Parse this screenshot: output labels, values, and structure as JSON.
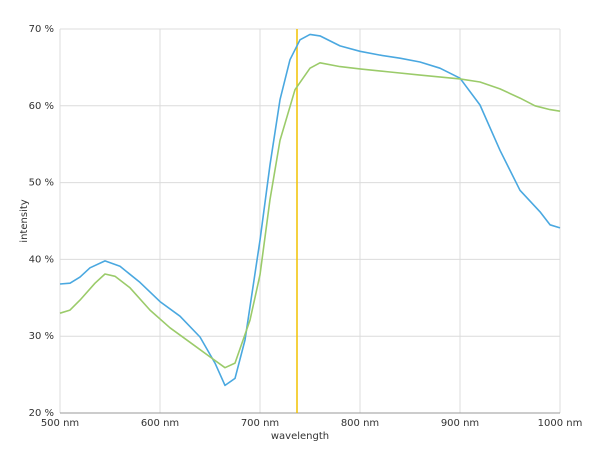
{
  "chart_data": {
    "type": "line",
    "xlabel": "wavelength",
    "ylabel": "intensity",
    "xlim": [
      500,
      1000
    ],
    "ylim": [
      20,
      70
    ],
    "xticks": [
      {
        "value": 500,
        "label": "500 nm"
      },
      {
        "value": 600,
        "label": "600 nm"
      },
      {
        "value": 700,
        "label": "700 nm"
      },
      {
        "value": 800,
        "label": "800 nm"
      },
      {
        "value": 900,
        "label": "900 nm"
      },
      {
        "value": 1000,
        "label": "1000 nm"
      }
    ],
    "yticks": [
      {
        "value": 20,
        "label": "20 %"
      },
      {
        "value": 30,
        "label": "30 %"
      },
      {
        "value": 40,
        "label": "40 %"
      },
      {
        "value": 50,
        "label": "50 %"
      },
      {
        "value": 60,
        "label": "60 %"
      },
      {
        "value": 70,
        "label": "70 %"
      }
    ],
    "grid": true,
    "vertical_line": {
      "x": 737,
      "color": "#f2c200"
    },
    "series": [
      {
        "color": "#4aa8e0",
        "x": [
          500,
          510,
          520,
          530,
          545,
          560,
          580,
          600,
          620,
          640,
          655,
          665,
          675,
          685,
          700,
          710,
          720,
          730,
          740,
          750,
          760,
          780,
          800,
          820,
          840,
          860,
          880,
          900,
          920,
          940,
          960,
          980,
          990,
          1000
        ],
        "values": [
          36.8,
          36.9,
          37.7,
          38.9,
          39.8,
          39.1,
          37.0,
          34.5,
          32.6,
          29.9,
          26.5,
          23.6,
          24.5,
          29.5,
          42.5,
          52.3,
          60.8,
          66.0,
          68.6,
          69.3,
          69.1,
          67.8,
          67.1,
          66.6,
          66.2,
          65.7,
          64.9,
          63.6,
          60.1,
          54.2,
          49.0,
          46.2,
          44.5,
          44.1
        ]
      },
      {
        "color": "#9bcb6a",
        "x": [
          500,
          510,
          520,
          535,
          545,
          555,
          570,
          590,
          610,
          630,
          650,
          665,
          675,
          690,
          700,
          710,
          720,
          735,
          750,
          760,
          780,
          800,
          830,
          860,
          900,
          920,
          940,
          960,
          975,
          990,
          1000
        ],
        "values": [
          33.0,
          33.4,
          34.7,
          36.9,
          38.1,
          37.8,
          36.3,
          33.4,
          31.1,
          29.2,
          27.3,
          25.9,
          26.5,
          32.1,
          38.0,
          47.8,
          55.5,
          62.1,
          64.9,
          65.6,
          65.1,
          64.8,
          64.4,
          64.0,
          63.5,
          63.1,
          62.2,
          61.0,
          60.0,
          59.5,
          59.3
        ]
      }
    ]
  }
}
